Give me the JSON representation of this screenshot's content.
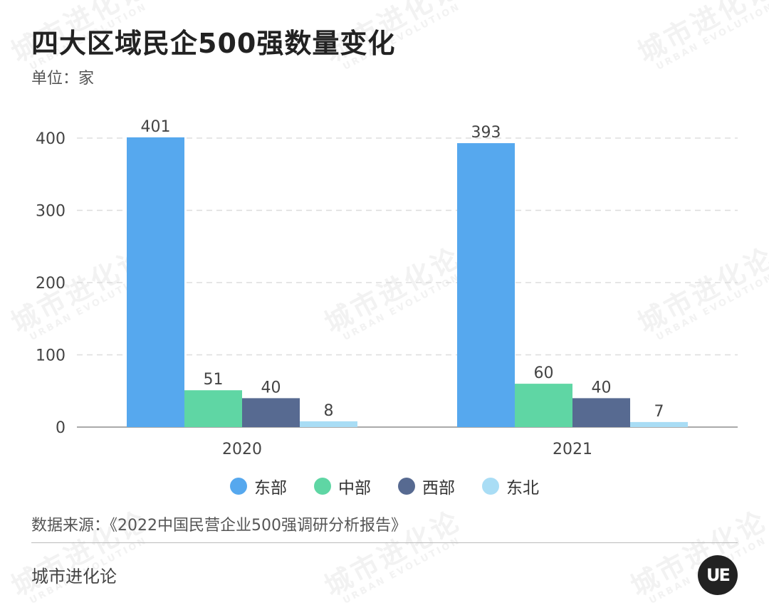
{
  "title": "四大区域民企500强数量变化",
  "unit_label": "单位：家",
  "source": "数据来源：《2022中国民营企业500强调研分析报告》",
  "brand": "城市进化论",
  "logo_text": "UE",
  "watermark": {
    "cn": "城市进化论",
    "en": "URBAN EVOLUTION"
  },
  "chart_data": {
    "type": "bar",
    "categories": [
      "2020",
      "2021"
    ],
    "series": [
      {
        "name": "东部",
        "values": [
          401,
          393
        ],
        "color": "#56a8ee"
      },
      {
        "name": "中部",
        "values": [
          51,
          60
        ],
        "color": "#5fd6a4"
      },
      {
        "name": "西部",
        "values": [
          40,
          40
        ],
        "color": "#576a91"
      },
      {
        "name": "东北",
        "values": [
          8,
          7
        ],
        "color": "#a9ddf5"
      }
    ],
    "yticks": [
      0,
      100,
      200,
      300,
      400
    ],
    "ylim": [
      0,
      420
    ],
    "grid": true,
    "legend_position": "bottom"
  }
}
